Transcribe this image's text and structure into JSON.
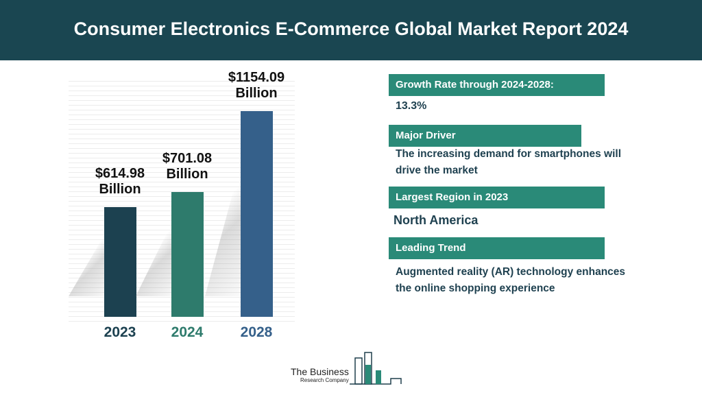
{
  "header": {
    "title": "Consumer Electronics E-Commerce Global Market Report 2024"
  },
  "chart_data": {
    "type": "bar",
    "categories": [
      "2023",
      "2024",
      "2028"
    ],
    "values": [
      614.98,
      701.08,
      1154.09
    ],
    "value_labels": [
      "$614.98 Billion",
      "$701.08 Billion",
      "$1154.09 Billion"
    ],
    "colors": [
      "#1c4150",
      "#2e7b6c",
      "#35608a"
    ]
  },
  "panel": {
    "items": [
      {
        "label": "Growth Rate through 2024-2028:",
        "text": "13.3%"
      },
      {
        "label": "Major Driver",
        "text": "The increasing demand for smartphones will drive the market"
      },
      {
        "label": "Largest Region in 2023",
        "text": "North America"
      },
      {
        "label": "Leading Trend",
        "text": "Augmented reality (AR) technology enhances the online shopping experience"
      }
    ]
  },
  "logo": {
    "name": "The Business",
    "subname": "Research Company"
  }
}
